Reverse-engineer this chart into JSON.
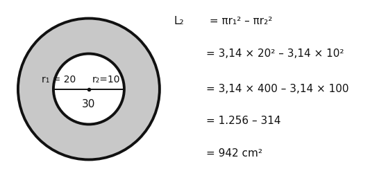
{
  "bg_color": "#ffffff",
  "ring_color": "#c8c8c8",
  "ring_edge_color": "#111111",
  "ring_linewidth": 2.8,
  "r1_label": "r₁ = 20",
  "r2_label": "r₂=10",
  "diameter_label": "30",
  "line1_a": "L₂",
  "line1_b": " = πr₁² – πr₂²",
  "line2": "= 3,14 × 20² – 3,14 × 10²",
  "line3": "= 3,14 × 400 – 3,14 × 100",
  "line4": "= 1.256 – 314",
  "line5": "= 942 cm²",
  "fontsize_main": 11.0,
  "fontsize_diagram": 10.0,
  "text_color": "#111111"
}
